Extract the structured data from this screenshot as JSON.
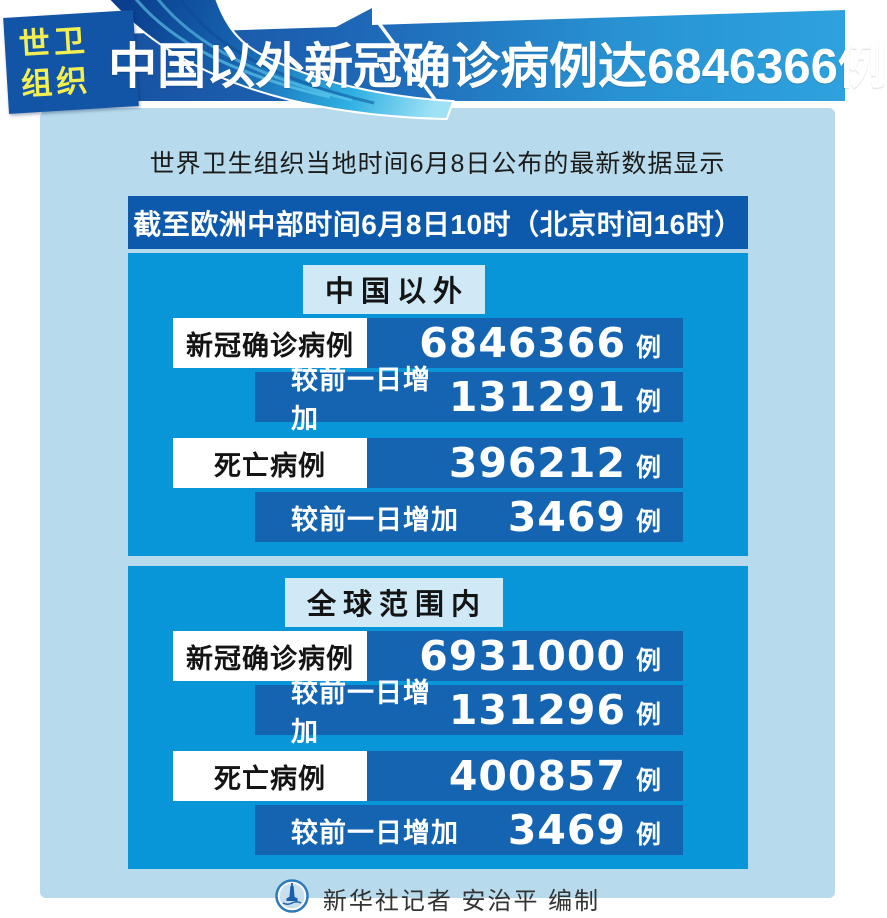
{
  "header": {
    "tag_line1": "世卫",
    "tag_line2": "组织",
    "title": "中国以外新冠确诊病例达6846366例"
  },
  "subtitle": "世界卫生组织当地时间6月8日公布的最新数据显示",
  "timebar": "截至欧洲中部时间6月8日10时（北京时间16时）",
  "sections": [
    {
      "title": "中国以外",
      "rows": [
        {
          "style": "primary",
          "label": "新冠确诊病例",
          "value": "6846366",
          "unit": "例"
        },
        {
          "style": "delta",
          "label": "较前一日增加",
          "value": "131291",
          "unit": "例"
        },
        {
          "style": "primary",
          "label": "死亡病例",
          "value": "396212",
          "unit": "例"
        },
        {
          "style": "delta",
          "label": "较前一日增加",
          "value": "3469",
          "unit": "例"
        }
      ]
    },
    {
      "title": "全球范围内",
      "rows": [
        {
          "style": "primary",
          "label": "新冠确诊病例",
          "value": "6931000",
          "unit": "例"
        },
        {
          "style": "delta",
          "label": "较前一日增加",
          "value": "131296",
          "unit": "例"
        },
        {
          "style": "primary",
          "label": "死亡病例",
          "value": "400857",
          "unit": "例"
        },
        {
          "style": "delta",
          "label": "较前一日增加",
          "value": "3469",
          "unit": "例"
        }
      ]
    }
  ],
  "footer": {
    "credit": "新华社记者  安治平  编制",
    "logo_icon": "xinhua-emblem-icon"
  },
  "colors": {
    "light_panel": "#b7dbec",
    "bright_panel": "#0996d8",
    "dark_box": "#1464b1",
    "timebar": "#0d59ab",
    "banner_dark": "#17509f",
    "banner_light": "#2ea2de",
    "tag_navy": "#1254a6",
    "tag_yellow": "#f2ef52",
    "title_box_pale": "#cfe9f7"
  },
  "chart_data": {
    "type": "table",
    "title": "中国以外新冠确诊病例达6846366例",
    "source_note": "世界卫生组织当地时间6月8日公布的最新数据显示",
    "as_of": "截至欧洲中部时间6月8日10时（北京时间16时）",
    "unit": "例",
    "groups": [
      {
        "name": "中国以外",
        "rows": [
          {
            "label": "新冠确诊病例",
            "value": 6846366
          },
          {
            "label": "较前一日增加",
            "value": 131291
          },
          {
            "label": "死亡病例",
            "value": 396212
          },
          {
            "label": "较前一日增加",
            "value": 3469
          }
        ]
      },
      {
        "name": "全球范围内",
        "rows": [
          {
            "label": "新冠确诊病例",
            "value": 6931000
          },
          {
            "label": "较前一日增加",
            "value": 131296
          },
          {
            "label": "死亡病例",
            "value": 400857
          },
          {
            "label": "较前一日增加",
            "value": 3469
          }
        ]
      }
    ]
  }
}
